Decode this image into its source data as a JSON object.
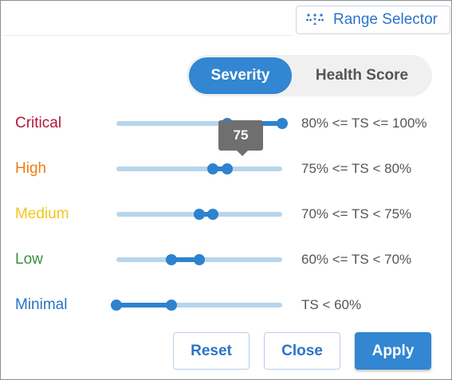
{
  "header": {
    "range_selector_label": "Range Selector"
  },
  "toggle": {
    "active_label": "Severity",
    "inactive_label": "Health Score"
  },
  "colors": {
    "critical": "#b0183a",
    "high": "#f07c1a",
    "medium": "#f2c81a",
    "low": "#3b8f3b",
    "minimal": "#2a72c2",
    "accent": "#3286d2"
  },
  "rows": [
    {
      "name": "Critical",
      "range": "80% <= TS <= 100%",
      "min": 80,
      "max": 100
    },
    {
      "name": "High",
      "range": "75% <= TS < 80%",
      "min": 75,
      "max": 80
    },
    {
      "name": "Medium",
      "range": "70% <= TS < 75%",
      "min": 70,
      "max": 75
    },
    {
      "name": "Low",
      "range": "60% <= TS < 70%",
      "min": 60,
      "max": 70
    },
    {
      "name": "Minimal",
      "range": "TS < 60%",
      "min": 0,
      "max": 60
    }
  ],
  "tooltip": {
    "value": "75"
  },
  "buttons": {
    "reset": "Reset",
    "close": "Close",
    "apply": "Apply"
  }
}
